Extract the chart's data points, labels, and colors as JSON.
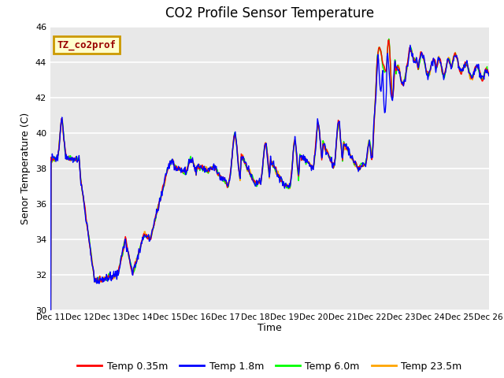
{
  "title": "CO2 Profile Sensor Temperature",
  "ylabel": "Senor Temperature (C)",
  "xlabel": "Time",
  "ylim": [
    30,
    46
  ],
  "yticks": [
    30,
    32,
    34,
    36,
    38,
    40,
    42,
    44,
    46
  ],
  "x_labels": [
    "Dec 11",
    "Dec 12",
    "Dec 13",
    "Dec 14",
    "Dec 15",
    "Dec 16",
    "Dec 17",
    "Dec 18",
    "Dec 19",
    "Dec 20",
    "Dec 21",
    "Dec 22",
    "Dec 23",
    "Dec 24",
    "Dec 25",
    "Dec 26"
  ],
  "legend_entries": [
    "Temp 0.35m",
    "Temp 1.8m",
    "Temp 6.0m",
    "Temp 23.5m"
  ],
  "legend_colors": [
    "red",
    "blue",
    "green",
    "orange"
  ],
  "annotation_text": "TZ_co2prof",
  "annotation_color": "#990000",
  "annotation_bg": "#ffffcc",
  "annotation_border": "#cc9900",
  "bg_color": "#e8e8e8",
  "line_width": 1.0,
  "title_fontsize": 12,
  "tick_fontsize": 8,
  "label_fontsize": 9
}
